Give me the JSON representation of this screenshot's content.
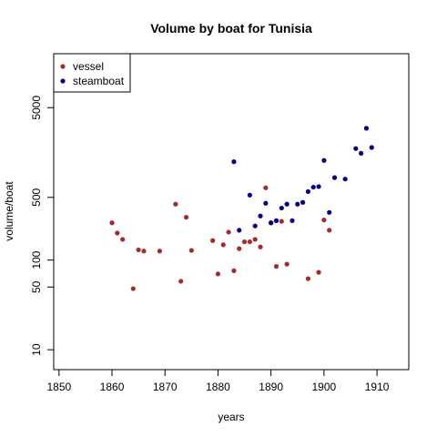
{
  "chart_data": {
    "type": "scatter",
    "title": "Volume by boat for Tunisia",
    "xlabel": "years",
    "ylabel": "volume/boat",
    "xlim": [
      1849,
      1916
    ],
    "ylim_log": [
      6,
      20000
    ],
    "y_scale": "log",
    "x_ticks": [
      1850,
      1860,
      1870,
      1880,
      1890,
      1900,
      1910
    ],
    "y_ticks": [
      10,
      50,
      100,
      500,
      5000
    ],
    "grid": false,
    "legend_position": "top-left",
    "series": [
      {
        "name": "vessel",
        "color": "#a52a2a",
        "points": [
          [
            1860,
            260
          ],
          [
            1861,
            200
          ],
          [
            1862,
            170
          ],
          [
            1864,
            48
          ],
          [
            1865,
            130
          ],
          [
            1866,
            126
          ],
          [
            1869,
            126
          ],
          [
            1872,
            420
          ],
          [
            1873,
            58
          ],
          [
            1874,
            300
          ],
          [
            1875,
            128
          ],
          [
            1879,
            165
          ],
          [
            1880,
            70
          ],
          [
            1881,
            148
          ],
          [
            1882,
            205
          ],
          [
            1883,
            76
          ],
          [
            1884,
            134
          ],
          [
            1885,
            160
          ],
          [
            1886,
            160
          ],
          [
            1887,
            170
          ],
          [
            1888,
            140
          ],
          [
            1889,
            640
          ],
          [
            1890,
            260
          ],
          [
            1891,
            85
          ],
          [
            1892,
            270
          ],
          [
            1893,
            90
          ],
          [
            1897,
            62
          ],
          [
            1899,
            73
          ],
          [
            1900,
            280
          ],
          [
            1901,
            215
          ]
        ]
      },
      {
        "name": "steamboat",
        "color": "#00008b",
        "points": [
          [
            1883,
            1250
          ],
          [
            1884,
            215
          ],
          [
            1886,
            530
          ],
          [
            1887,
            240
          ],
          [
            1888,
            310
          ],
          [
            1889,
            430
          ],
          [
            1890,
            260
          ],
          [
            1891,
            275
          ],
          [
            1892,
            380
          ],
          [
            1893,
            420
          ],
          [
            1894,
            275
          ],
          [
            1895,
            420
          ],
          [
            1896,
            440
          ],
          [
            1897,
            580
          ],
          [
            1898,
            650
          ],
          [
            1899,
            660
          ],
          [
            1900,
            1290
          ],
          [
            1901,
            340
          ],
          [
            1902,
            830
          ],
          [
            1904,
            800
          ],
          [
            1906,
            1750
          ],
          [
            1907,
            1550
          ],
          [
            1908,
            2950
          ],
          [
            1909,
            1800
          ]
        ]
      }
    ]
  }
}
